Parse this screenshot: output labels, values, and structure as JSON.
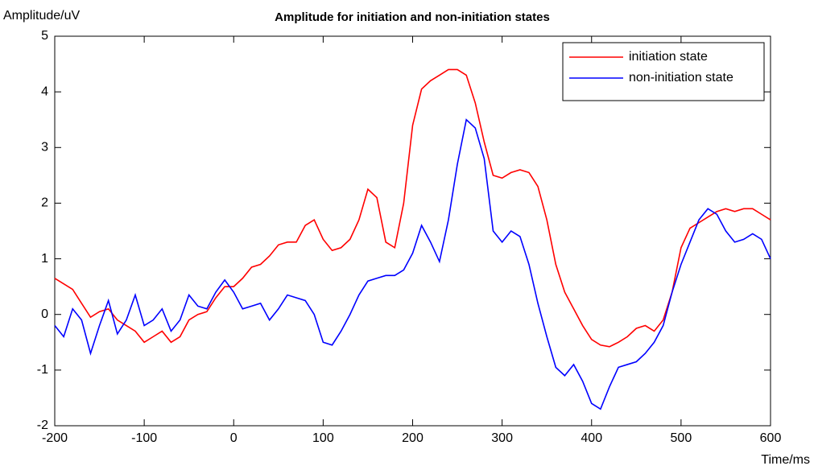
{
  "chart_data": {
    "type": "line",
    "title": "Amplitude for initiation and non-initiation states",
    "ylabel": "Amplitude/uV",
    "xlabel": "Time/ms",
    "x": [
      -200,
      -190,
      -180,
      -170,
      -160,
      -150,
      -140,
      -130,
      -120,
      -110,
      -100,
      -90,
      -80,
      -70,
      -60,
      -50,
      -40,
      -30,
      -20,
      -10,
      0,
      10,
      20,
      30,
      40,
      50,
      60,
      70,
      80,
      90,
      100,
      110,
      120,
      130,
      140,
      150,
      160,
      170,
      180,
      190,
      200,
      210,
      220,
      230,
      240,
      250,
      260,
      270,
      280,
      290,
      300,
      310,
      320,
      330,
      340,
      350,
      360,
      370,
      380,
      390,
      400,
      410,
      420,
      430,
      440,
      450,
      460,
      470,
      480,
      490,
      500,
      510,
      520,
      530,
      540,
      550,
      560,
      570,
      580,
      590,
      600
    ],
    "series": [
      {
        "name": "initiation state",
        "color": "#ff0000",
        "values": [
          0.65,
          0.55,
          0.45,
          0.2,
          -0.05,
          0.05,
          0.1,
          -0.1,
          -0.2,
          -0.3,
          -0.5,
          -0.4,
          -0.3,
          -0.5,
          -0.4,
          -0.1,
          0.0,
          0.05,
          0.3,
          0.5,
          0.5,
          0.65,
          0.85,
          0.9,
          1.05,
          1.25,
          1.3,
          1.3,
          1.6,
          1.7,
          1.35,
          1.15,
          1.2,
          1.35,
          1.7,
          2.25,
          2.1,
          1.3,
          1.2,
          2.0,
          3.4,
          4.05,
          4.2,
          4.3,
          4.4,
          4.4,
          4.3,
          3.8,
          3.1,
          2.5,
          2.45,
          2.55,
          2.6,
          2.55,
          2.3,
          1.7,
          0.9,
          0.4,
          0.1,
          -0.2,
          -0.45,
          -0.55,
          -0.58,
          -0.5,
          -0.4,
          -0.25,
          -0.2,
          -0.3,
          -0.1,
          0.4,
          1.2,
          1.55,
          1.65,
          1.75,
          1.85,
          1.9,
          1.85,
          1.9,
          1.9,
          1.8,
          1.7
        ]
      },
      {
        "name": "non-initiation state",
        "color": "#0000ff",
        "values": [
          -0.2,
          -0.4,
          0.1,
          -0.1,
          -0.7,
          -0.2,
          0.25,
          -0.35,
          -0.1,
          0.35,
          -0.2,
          -0.1,
          0.1,
          -0.3,
          -0.1,
          0.35,
          0.15,
          0.1,
          0.4,
          0.62,
          0.4,
          0.1,
          0.15,
          0.2,
          -0.1,
          0.1,
          0.35,
          0.3,
          0.25,
          0.0,
          -0.5,
          -0.55,
          -0.3,
          0.0,
          0.35,
          0.6,
          0.65,
          0.7,
          0.7,
          0.8,
          1.1,
          1.6,
          1.3,
          0.95,
          1.7,
          2.7,
          3.5,
          3.35,
          2.8,
          1.5,
          1.3,
          1.5,
          1.4,
          0.9,
          0.2,
          -0.4,
          -0.95,
          -1.1,
          -0.9,
          -1.2,
          -1.6,
          -1.7,
          -1.3,
          -0.95,
          -0.9,
          -0.85,
          -0.7,
          -0.5,
          -0.2,
          0.4,
          0.9,
          1.3,
          1.7,
          1.9,
          1.8,
          1.5,
          1.3,
          1.35,
          1.45,
          1.35,
          1.0
        ]
      }
    ],
    "xlim": [
      -200,
      600
    ],
    "xticks": [
      -200,
      -100,
      0,
      100,
      200,
      300,
      400,
      500,
      600
    ],
    "ylim": [
      -2,
      5
    ],
    "yticks": [
      -2,
      -1,
      0,
      1,
      2,
      3,
      4,
      5
    ],
    "grid": false,
    "legend": "top-right"
  }
}
